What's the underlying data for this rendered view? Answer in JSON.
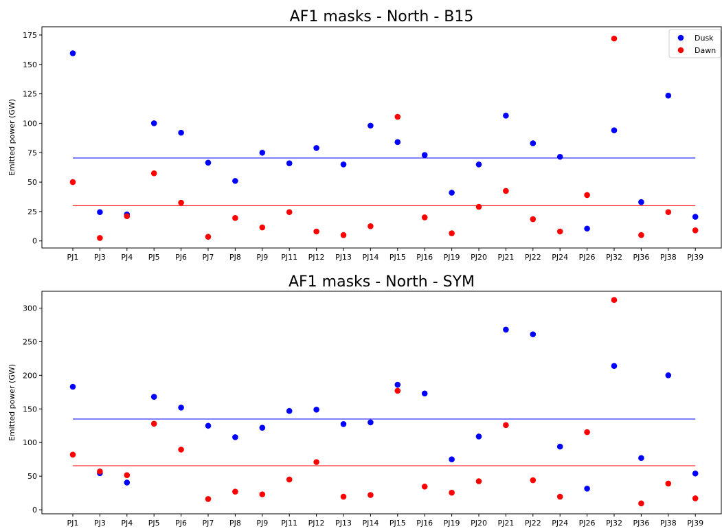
{
  "chart_data": [
    {
      "type": "scatter",
      "title": "AF1 masks - North - B15",
      "xlabel": "",
      "ylabel": "Emitted power (GW)",
      "ylim": [
        -6,
        182
      ],
      "yticks": [
        0,
        25,
        50,
        75,
        100,
        125,
        150,
        175
      ],
      "grid": false,
      "legend": "top-right",
      "categories": [
        "PJ1",
        "PJ3",
        "PJ4",
        "PJ5",
        "PJ6",
        "PJ7",
        "PJ8",
        "PJ9",
        "PJ11",
        "PJ12",
        "PJ13",
        "PJ14",
        "PJ15",
        "PJ16",
        "PJ19",
        "PJ20",
        "PJ21",
        "PJ22",
        "PJ24",
        "PJ26",
        "PJ32",
        "PJ36",
        "PJ38",
        "PJ39"
      ],
      "series": [
        {
          "name": "Dusk",
          "color": "#0000ff",
          "mean": 70.5,
          "values": [
            159.5,
            24.5,
            22.5,
            100,
            92,
            66.5,
            51,
            75,
            66,
            79,
            65,
            98,
            84,
            73,
            41,
            65,
            106.5,
            83,
            71.5,
            10.5,
            94,
            33,
            123.5,
            20.5
          ]
        },
        {
          "name": "Dawn",
          "color": "#ff0000",
          "mean": 30,
          "values": [
            50,
            2.5,
            21,
            57.5,
            32.5,
            3.5,
            19.5,
            11.5,
            24.5,
            8,
            5,
            12.5,
            105.5,
            20,
            6.5,
            29,
            42.5,
            18.5,
            8,
            39,
            172,
            5,
            24.5,
            9
          ]
        }
      ]
    },
    {
      "type": "scatter",
      "title": "AF1 masks - North - SYM",
      "xlabel": "",
      "ylabel": "Emitted power (GW)",
      "ylim": [
        -6,
        325
      ],
      "yticks": [
        0,
        50,
        100,
        150,
        200,
        250,
        300
      ],
      "grid": false,
      "categories": [
        "PJ1",
        "PJ3",
        "PJ4",
        "PJ5",
        "PJ6",
        "PJ7",
        "PJ8",
        "PJ9",
        "PJ11",
        "PJ12",
        "PJ13",
        "PJ14",
        "PJ15",
        "PJ16",
        "PJ19",
        "PJ20",
        "PJ21",
        "PJ22",
        "PJ24",
        "PJ26",
        "PJ32",
        "PJ36",
        "PJ38",
        "PJ39"
      ],
      "series": [
        {
          "name": "Dusk",
          "color": "#0000ff",
          "mean": 135,
          "values": [
            183,
            54.5,
            40.5,
            168,
            152,
            125,
            108,
            122,
            147,
            149,
            127.5,
            130,
            186,
            173,
            75,
            109,
            268,
            261,
            94,
            31.5,
            214,
            77,
            200,
            54
          ]
        },
        {
          "name": "Dawn",
          "color": "#ff0000",
          "mean": 65.5,
          "values": [
            82,
            57,
            51.5,
            128,
            89.5,
            16,
            27,
            23,
            45,
            71,
            19.5,
            22,
            177,
            34.5,
            25.5,
            42.5,
            126,
            44,
            19.5,
            115.5,
            312,
            9.5,
            39,
            17
          ]
        }
      ]
    }
  ]
}
